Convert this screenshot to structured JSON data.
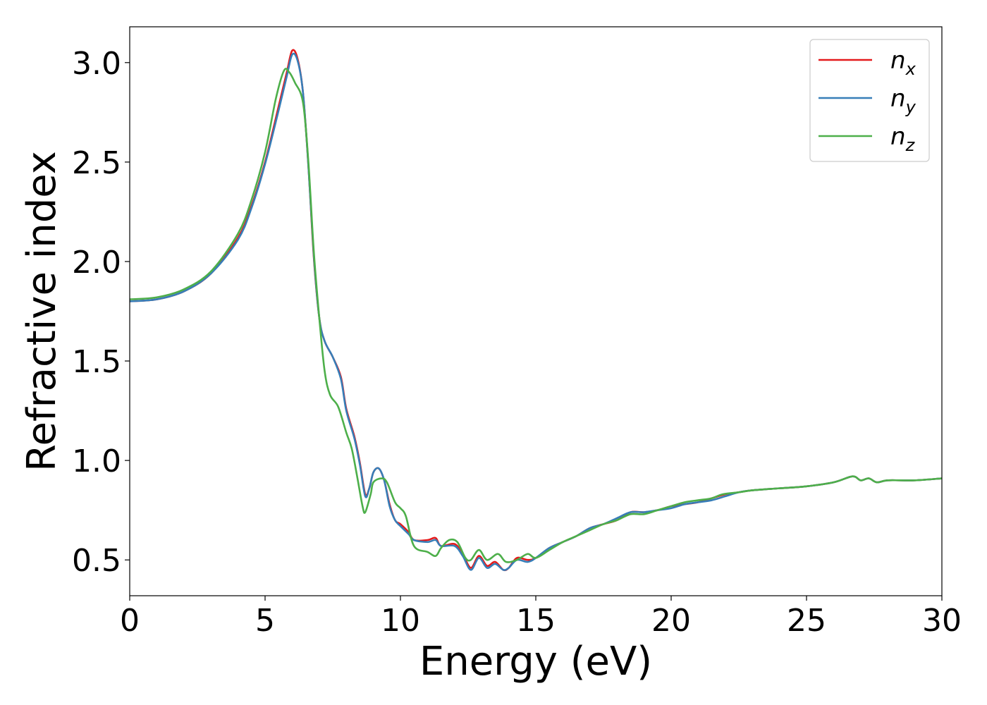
{
  "chart_data": {
    "type": "line",
    "title": "",
    "xlabel": "Energy (eV)",
    "ylabel": "Refractive index",
    "xlim": [
      0,
      30
    ],
    "ylim": [
      0.32,
      3.18
    ],
    "xticks": [
      0,
      5,
      10,
      15,
      20,
      25,
      30
    ],
    "xtick_labels": [
      "0",
      "5",
      "10",
      "15",
      "20",
      "25",
      "30"
    ],
    "yticks": [
      0.5,
      1.0,
      1.5,
      2.0,
      2.5,
      3.0
    ],
    "ytick_labels": [
      "0.5",
      "1.0",
      "1.5",
      "2.0",
      "2.5",
      "3.0"
    ],
    "grid": false,
    "legend_position": "top-right",
    "series": [
      {
        "name": "n",
        "subscript": "x",
        "color": "#e41a1c",
        "points": [
          [
            0,
            1.8
          ],
          [
            1,
            1.81
          ],
          [
            2,
            1.85
          ],
          [
            3,
            1.94
          ],
          [
            4,
            2.12
          ],
          [
            4.5,
            2.28
          ],
          [
            5,
            2.5
          ],
          [
            5.5,
            2.78
          ],
          [
            5.8,
            2.95
          ],
          [
            6.0,
            3.06
          ],
          [
            6.2,
            3.02
          ],
          [
            6.4,
            2.85
          ],
          [
            6.6,
            2.48
          ],
          [
            6.8,
            2.02
          ],
          [
            7.0,
            1.72
          ],
          [
            7.2,
            1.6
          ],
          [
            7.5,
            1.52
          ],
          [
            7.8,
            1.42
          ],
          [
            8.0,
            1.26
          ],
          [
            8.3,
            1.12
          ],
          [
            8.5,
            0.99
          ],
          [
            8.7,
            0.83
          ],
          [
            8.85,
            0.86
          ],
          [
            9.0,
            0.94
          ],
          [
            9.2,
            0.96
          ],
          [
            9.4,
            0.9
          ],
          [
            9.6,
            0.78
          ],
          [
            9.8,
            0.7
          ],
          [
            10.0,
            0.68
          ],
          [
            10.3,
            0.64
          ],
          [
            10.5,
            0.6
          ],
          [
            11.0,
            0.6
          ],
          [
            11.3,
            0.61
          ],
          [
            11.5,
            0.57
          ],
          [
            12.0,
            0.58
          ],
          [
            12.3,
            0.53
          ],
          [
            12.6,
            0.46
          ],
          [
            12.9,
            0.52
          ],
          [
            13.2,
            0.47
          ],
          [
            13.5,
            0.49
          ],
          [
            13.8,
            0.45
          ],
          [
            14.0,
            0.46
          ],
          [
            14.3,
            0.51
          ],
          [
            14.7,
            0.5
          ],
          [
            15.0,
            0.51
          ],
          [
            15.5,
            0.56
          ],
          [
            16.0,
            0.59
          ],
          [
            16.5,
            0.62
          ],
          [
            17.0,
            0.66
          ],
          [
            17.5,
            0.68
          ],
          [
            18.0,
            0.7
          ],
          [
            18.5,
            0.74
          ],
          [
            19.0,
            0.74
          ],
          [
            19.5,
            0.75
          ],
          [
            20.0,
            0.77
          ],
          [
            20.5,
            0.78
          ],
          [
            21.0,
            0.79
          ],
          [
            21.5,
            0.81
          ],
          [
            22.0,
            0.83
          ],
          [
            22.5,
            0.84
          ],
          [
            23.0,
            0.85
          ],
          [
            24.0,
            0.86
          ],
          [
            25.0,
            0.87
          ],
          [
            26.0,
            0.89
          ],
          [
            26.7,
            0.92
          ],
          [
            27.0,
            0.9
          ],
          [
            27.3,
            0.91
          ],
          [
            27.6,
            0.89
          ],
          [
            28.0,
            0.9
          ],
          [
            29.0,
            0.9
          ],
          [
            30.0,
            0.91
          ]
        ]
      },
      {
        "name": "n",
        "subscript": "y",
        "color": "#377eb8",
        "points": [
          [
            0,
            1.8
          ],
          [
            1,
            1.81
          ],
          [
            2,
            1.85
          ],
          [
            3,
            1.94
          ],
          [
            4,
            2.11
          ],
          [
            4.5,
            2.27
          ],
          [
            5,
            2.49
          ],
          [
            5.5,
            2.76
          ],
          [
            5.8,
            2.93
          ],
          [
            6.0,
            3.04
          ],
          [
            6.2,
            3.01
          ],
          [
            6.4,
            2.85
          ],
          [
            6.6,
            2.48
          ],
          [
            6.8,
            2.03
          ],
          [
            7.0,
            1.72
          ],
          [
            7.2,
            1.6
          ],
          [
            7.5,
            1.52
          ],
          [
            7.8,
            1.41
          ],
          [
            8.0,
            1.25
          ],
          [
            8.3,
            1.11
          ],
          [
            8.5,
            0.98
          ],
          [
            8.7,
            0.82
          ],
          [
            8.85,
            0.86
          ],
          [
            9.0,
            0.94
          ],
          [
            9.2,
            0.96
          ],
          [
            9.4,
            0.9
          ],
          [
            9.6,
            0.77
          ],
          [
            9.8,
            0.7
          ],
          [
            10.0,
            0.67
          ],
          [
            10.3,
            0.63
          ],
          [
            10.5,
            0.6
          ],
          [
            11.0,
            0.59
          ],
          [
            11.3,
            0.6
          ],
          [
            11.5,
            0.57
          ],
          [
            12.0,
            0.57
          ],
          [
            12.3,
            0.52
          ],
          [
            12.6,
            0.45
          ],
          [
            12.9,
            0.51
          ],
          [
            13.2,
            0.46
          ],
          [
            13.5,
            0.48
          ],
          [
            13.8,
            0.45
          ],
          [
            14.0,
            0.46
          ],
          [
            14.3,
            0.5
          ],
          [
            14.7,
            0.49
          ],
          [
            15.0,
            0.51
          ],
          [
            15.5,
            0.56
          ],
          [
            16.0,
            0.59
          ],
          [
            16.5,
            0.62
          ],
          [
            17.0,
            0.66
          ],
          [
            17.5,
            0.68
          ],
          [
            18.0,
            0.71
          ],
          [
            18.5,
            0.74
          ],
          [
            19.0,
            0.74
          ],
          [
            19.5,
            0.75
          ],
          [
            20.0,
            0.76
          ],
          [
            20.5,
            0.78
          ],
          [
            21.0,
            0.79
          ],
          [
            21.5,
            0.8
          ],
          [
            22.0,
            0.82
          ],
          [
            22.5,
            0.84
          ],
          [
            23.0,
            0.85
          ],
          [
            24.0,
            0.86
          ],
          [
            25.0,
            0.87
          ],
          [
            26.0,
            0.89
          ],
          [
            26.7,
            0.92
          ],
          [
            27.0,
            0.9
          ],
          [
            27.3,
            0.91
          ],
          [
            27.6,
            0.89
          ],
          [
            28.0,
            0.9
          ],
          [
            29.0,
            0.9
          ],
          [
            30.0,
            0.91
          ]
        ]
      },
      {
        "name": "n",
        "subscript": "z",
        "color": "#4daf4a",
        "points": [
          [
            0,
            1.81
          ],
          [
            1,
            1.82
          ],
          [
            2,
            1.86
          ],
          [
            3,
            1.95
          ],
          [
            4,
            2.14
          ],
          [
            4.5,
            2.31
          ],
          [
            5,
            2.55
          ],
          [
            5.4,
            2.82
          ],
          [
            5.7,
            2.96
          ],
          [
            5.9,
            2.95
          ],
          [
            6.1,
            2.9
          ],
          [
            6.4,
            2.8
          ],
          [
            6.6,
            2.5
          ],
          [
            6.8,
            2.05
          ],
          [
            7.0,
            1.72
          ],
          [
            7.2,
            1.45
          ],
          [
            7.4,
            1.33
          ],
          [
            7.7,
            1.27
          ],
          [
            8.0,
            1.14
          ],
          [
            8.2,
            1.06
          ],
          [
            8.4,
            0.92
          ],
          [
            8.6,
            0.77
          ],
          [
            8.7,
            0.74
          ],
          [
            8.9,
            0.83
          ],
          [
            9.0,
            0.89
          ],
          [
            9.3,
            0.91
          ],
          [
            9.5,
            0.89
          ],
          [
            9.8,
            0.79
          ],
          [
            10.0,
            0.76
          ],
          [
            10.2,
            0.72
          ],
          [
            10.5,
            0.57
          ],
          [
            11.0,
            0.54
          ],
          [
            11.3,
            0.52
          ],
          [
            11.5,
            0.56
          ],
          [
            11.8,
            0.6
          ],
          [
            12.1,
            0.59
          ],
          [
            12.4,
            0.51
          ],
          [
            12.6,
            0.5
          ],
          [
            12.9,
            0.55
          ],
          [
            13.2,
            0.5
          ],
          [
            13.6,
            0.53
          ],
          [
            13.9,
            0.49
          ],
          [
            14.3,
            0.5
          ],
          [
            14.7,
            0.53
          ],
          [
            15.0,
            0.51
          ],
          [
            15.5,
            0.55
          ],
          [
            16.0,
            0.59
          ],
          [
            16.5,
            0.62
          ],
          [
            17.0,
            0.65
          ],
          [
            17.5,
            0.68
          ],
          [
            18.0,
            0.7
          ],
          [
            18.5,
            0.73
          ],
          [
            19.0,
            0.73
          ],
          [
            19.5,
            0.75
          ],
          [
            20.0,
            0.77
          ],
          [
            20.5,
            0.79
          ],
          [
            21.0,
            0.8
          ],
          [
            21.5,
            0.81
          ],
          [
            21.9,
            0.83
          ],
          [
            22.5,
            0.84
          ],
          [
            23.0,
            0.85
          ],
          [
            24.0,
            0.86
          ],
          [
            25.0,
            0.87
          ],
          [
            26.0,
            0.89
          ],
          [
            26.7,
            0.92
          ],
          [
            27.0,
            0.9
          ],
          [
            27.3,
            0.91
          ],
          [
            27.6,
            0.89
          ],
          [
            28.0,
            0.9
          ],
          [
            29.0,
            0.9
          ],
          [
            30.0,
            0.91
          ]
        ]
      }
    ]
  }
}
